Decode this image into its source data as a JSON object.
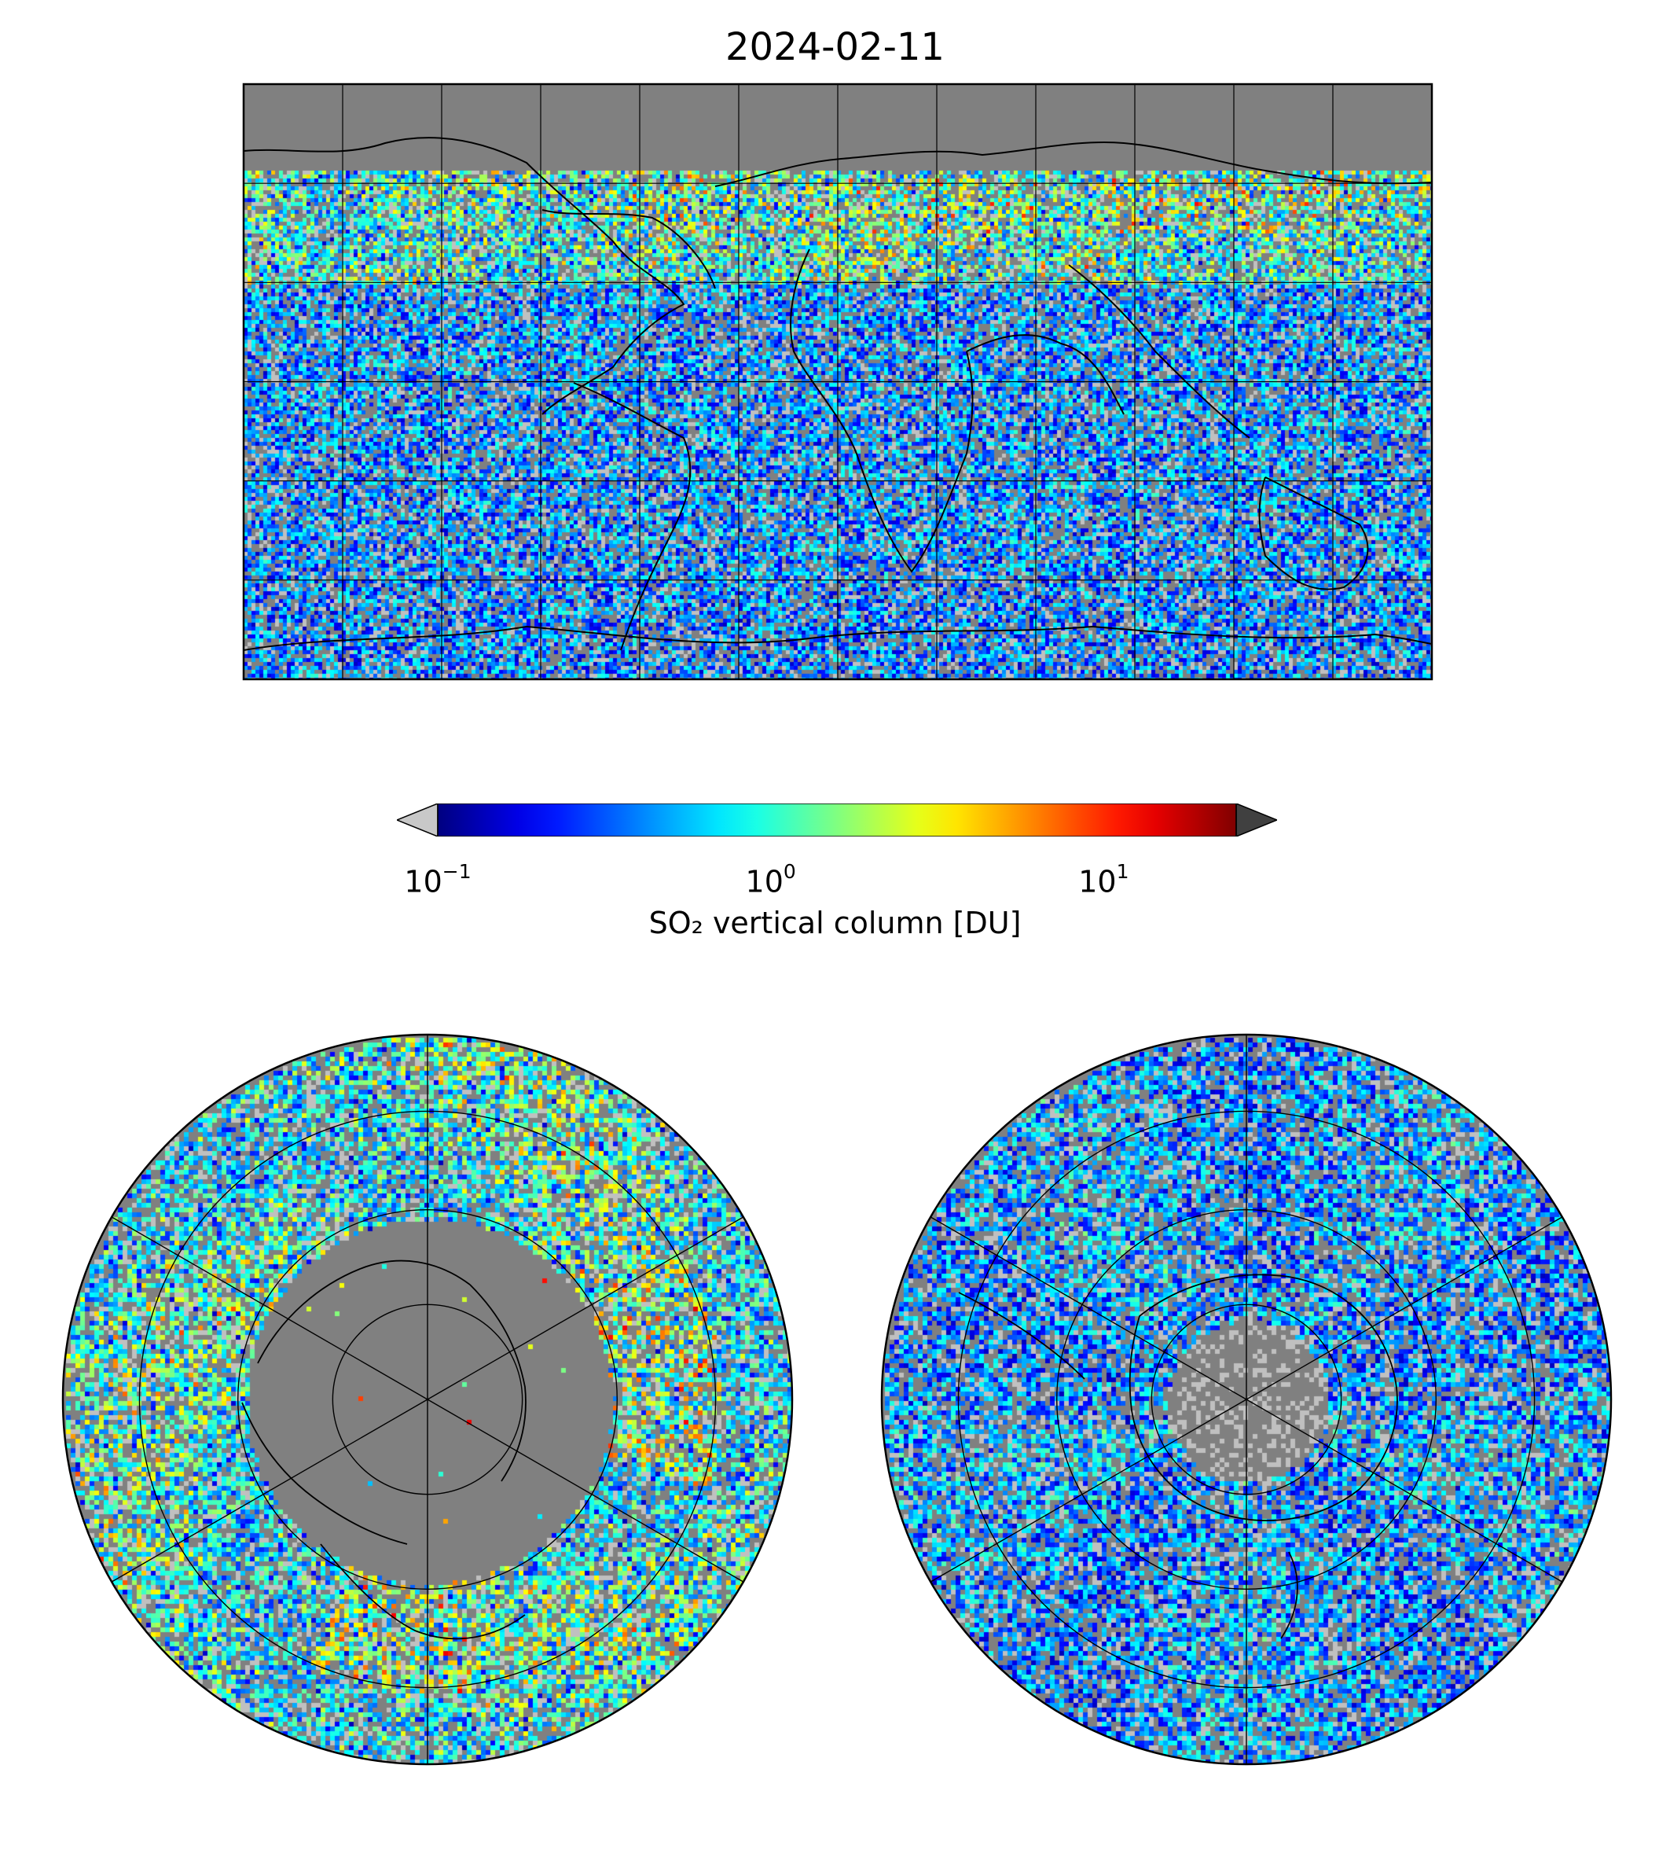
{
  "figure": {
    "title": "2024-02-11"
  },
  "colorbar": {
    "label": "SO₂ vertical column [DU]",
    "scale": "log",
    "range": [
      0.1,
      25
    ],
    "colormap": "jet",
    "extend_low_color": "#c8c8c8",
    "extend_high_color": "#404040",
    "ticks": [
      {
        "base": "10",
        "exp": "−1",
        "value": 0.1
      },
      {
        "base": "10",
        "exp": "0",
        "value": 1
      },
      {
        "base": "10",
        "exp": "1",
        "value": 10
      }
    ]
  },
  "maps": {
    "background_color": "#808080",
    "low_value_color": "#c0c0c0",
    "coastline_color": "#000000",
    "gridline_color": "#000000",
    "global": {
      "projection": "plate carree",
      "lon_grid_step_deg": 30,
      "lat_grid_step_deg": 30
    },
    "north_polar": {
      "projection": "north polar stereographic"
    },
    "south_polar": {
      "projection": "south polar stereographic"
    }
  }
}
